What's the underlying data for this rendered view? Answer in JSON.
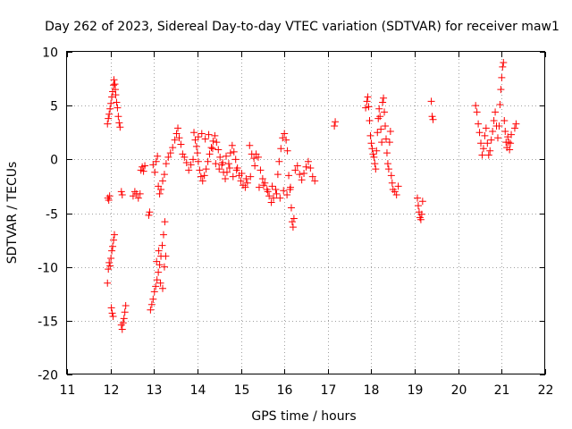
{
  "chart_data": {
    "type": "scatter",
    "title": "Day 262 of 2023, Sidereal Day-to-day VTEC variation (SDTVAR) for receiver maw1",
    "xlabel": "GPS time / hours",
    "ylabel": "SDTVAR / TECUs",
    "xlim": [
      11,
      22
    ],
    "ylim": [
      -20,
      10
    ],
    "xticks": [
      "11",
      "12",
      "13",
      "14",
      "15",
      "16",
      "17",
      "18",
      "19",
      "20",
      "21",
      "22"
    ],
    "yticks": [
      "-20",
      "-15",
      "-10",
      "-5",
      "0",
      "5",
      "10"
    ],
    "grid": true,
    "marker": "plus",
    "color": "#ff0000",
    "series": [
      {
        "name": "maw1",
        "points": [
          [
            11.93,
            3.3
          ],
          [
            11.95,
            3.8
          ],
          [
            11.97,
            4.2
          ],
          [
            11.99,
            4.7
          ],
          [
            12.01,
            5.2
          ],
          [
            12.03,
            5.8
          ],
          [
            12.05,
            6.3
          ],
          [
            12.07,
            6.9
          ],
          [
            12.08,
            7.4
          ],
          [
            12.1,
            7.0
          ],
          [
            12.11,
            6.5
          ],
          [
            12.12,
            6.0
          ],
          [
            12.14,
            5.3
          ],
          [
            12.16,
            4.8
          ],
          [
            12.18,
            4.0
          ],
          [
            12.2,
            3.4
          ],
          [
            12.22,
            3.0
          ],
          [
            11.94,
            -3.6
          ],
          [
            11.96,
            -3.8
          ],
          [
            11.98,
            -3.4
          ],
          [
            11.93,
            -11.5
          ],
          [
            11.95,
            -10.2
          ],
          [
            11.97,
            -9.6
          ],
          [
            11.99,
            -9.9
          ],
          [
            12.01,
            -9.2
          ],
          [
            12.03,
            -8.5
          ],
          [
            12.05,
            -8.1
          ],
          [
            12.07,
            -7.5
          ],
          [
            12.09,
            -7.0
          ],
          [
            12.02,
            -13.8
          ],
          [
            12.04,
            -14.3
          ],
          [
            12.06,
            -14.6
          ],
          [
            12.25,
            -15.4
          ],
          [
            12.27,
            -15.8
          ],
          [
            12.29,
            -15.2
          ],
          [
            12.31,
            -14.8
          ],
          [
            12.33,
            -14.2
          ],
          [
            12.35,
            -13.6
          ],
          [
            12.25,
            -3.0
          ],
          [
            12.27,
            -3.3
          ],
          [
            12.52,
            -3.4
          ],
          [
            12.56,
            -3.0
          ],
          [
            12.6,
            -3.2
          ],
          [
            12.64,
            -3.6
          ],
          [
            12.68,
            -3.2
          ],
          [
            12.7,
            -1.0
          ],
          [
            12.73,
            -0.7
          ],
          [
            12.76,
            -1.1
          ],
          [
            12.79,
            -0.6
          ],
          [
            12.88,
            -5.2
          ],
          [
            12.9,
            -4.9
          ],
          [
            12.92,
            -14.0
          ],
          [
            12.95,
            -13.5
          ],
          [
            12.98,
            -13.0
          ],
          [
            13.01,
            -12.3
          ],
          [
            13.04,
            -11.8
          ],
          [
            13.07,
            -11.2
          ],
          [
            13.1,
            -10.5
          ],
          [
            13.13,
            -9.8
          ],
          [
            13.16,
            -9.0
          ],
          [
            13.19,
            -8.0
          ],
          [
            13.22,
            -7.0
          ],
          [
            13.25,
            -5.8
          ],
          [
            13.06,
            -9.5
          ],
          [
            13.11,
            -8.5
          ],
          [
            13.15,
            -11.5
          ],
          [
            13.2,
            -12.0
          ],
          [
            13.24,
            -10.0
          ],
          [
            13.27,
            -9.0
          ],
          [
            12.98,
            -0.5
          ],
          [
            13.02,
            -1.2
          ],
          [
            13.05,
            -0.2
          ],
          [
            13.08,
            0.3
          ],
          [
            13.1,
            -2.5
          ],
          [
            13.13,
            -3.2
          ],
          [
            13.16,
            -2.8
          ],
          [
            13.2,
            -2.0
          ],
          [
            13.24,
            -1.4
          ],
          [
            13.28,
            -0.4
          ],
          [
            13.33,
            0.2
          ],
          [
            13.38,
            0.6
          ],
          [
            13.43,
            1.1
          ],
          [
            13.48,
            1.8
          ],
          [
            13.52,
            2.4
          ],
          [
            13.55,
            2.9
          ],
          [
            13.58,
            2.0
          ],
          [
            13.62,
            1.4
          ],
          [
            13.66,
            0.5
          ],
          [
            13.7,
            0.2
          ],
          [
            13.75,
            -0.3
          ],
          [
            13.8,
            -1.0
          ],
          [
            13.85,
            -0.5
          ],
          [
            13.9,
            0.0
          ],
          [
            13.92,
            2.5
          ],
          [
            13.95,
            1.8
          ],
          [
            13.98,
            1.2
          ],
          [
            14.0,
            0.6
          ],
          [
            14.02,
            -0.2
          ],
          [
            14.05,
            -1.0
          ],
          [
            14.08,
            -1.6
          ],
          [
            14.12,
            -2.0
          ],
          [
            14.16,
            -1.5
          ],
          [
            14.2,
            -0.9
          ],
          [
            14.24,
            -0.2
          ],
          [
            14.28,
            0.5
          ],
          [
            14.32,
            1.1
          ],
          [
            14.36,
            1.7
          ],
          [
            14.4,
            2.2
          ],
          [
            14.44,
            1.6
          ],
          [
            14.48,
            0.9
          ],
          [
            14.52,
            0.2
          ],
          [
            14.56,
            -0.5
          ],
          [
            14.6,
            -1.2
          ],
          [
            14.64,
            -1.8
          ],
          [
            14.68,
            -1.2
          ],
          [
            14.72,
            -0.4
          ],
          [
            14.76,
            0.6
          ],
          [
            14.8,
            1.3
          ],
          [
            14.84,
            0.7
          ],
          [
            14.88,
            0.0
          ],
          [
            14.92,
            -0.8
          ],
          [
            14.96,
            -1.5
          ],
          [
            15.0,
            -2.0
          ],
          [
            15.05,
            -2.4
          ],
          [
            15.1,
            -2.6
          ],
          [
            15.15,
            -2.2
          ],
          [
            15.2,
            1.3
          ],
          [
            15.25,
            0.5
          ],
          [
            15.3,
            0.1
          ],
          [
            15.35,
            0.5
          ],
          [
            15.4,
            0.2
          ],
          [
            15.45,
            -1.0
          ],
          [
            15.5,
            -1.8
          ],
          [
            15.55,
            -2.2
          ],
          [
            15.6,
            -2.8
          ],
          [
            15.65,
            -3.4
          ],
          [
            15.7,
            -4.0
          ],
          [
            15.75,
            -3.6
          ],
          [
            15.8,
            -2.8
          ],
          [
            15.85,
            -1.4
          ],
          [
            15.88,
            -0.2
          ],
          [
            15.92,
            1.0
          ],
          [
            15.96,
            2.0
          ],
          [
            16.0,
            2.4
          ],
          [
            16.04,
            1.8
          ],
          [
            16.07,
            0.8
          ],
          [
            16.1,
            -1.5
          ],
          [
            16.13,
            -2.8
          ],
          [
            16.16,
            -4.5
          ],
          [
            16.18,
            -5.8
          ],
          [
            16.2,
            -6.3
          ],
          [
            16.22,
            -5.5
          ],
          [
            14.02,
            2.1
          ],
          [
            14.1,
            2.4
          ],
          [
            14.18,
            1.9
          ],
          [
            14.26,
            2.3
          ],
          [
            14.35,
            1.0
          ],
          [
            14.42,
            -0.4
          ],
          [
            14.5,
            -0.9
          ],
          [
            14.58,
            -0.3
          ],
          [
            14.66,
            0.3
          ],
          [
            14.74,
            -0.8
          ],
          [
            14.82,
            -1.6
          ],
          [
            14.9,
            -1.0
          ],
          [
            15.02,
            -1.3
          ],
          [
            15.12,
            -1.8
          ],
          [
            15.22,
            -1.6
          ],
          [
            15.32,
            -0.6
          ],
          [
            15.42,
            -2.6
          ],
          [
            15.52,
            -2.4
          ],
          [
            15.62,
            -3.0
          ],
          [
            15.72,
            -2.5
          ],
          [
            15.82,
            -3.2
          ],
          [
            15.9,
            -3.6
          ],
          [
            15.98,
            -2.9
          ],
          [
            16.06,
            -3.3
          ],
          [
            16.14,
            -2.6
          ],
          [
            16.25,
            -1.0
          ],
          [
            16.3,
            -0.6
          ],
          [
            16.35,
            -1.4
          ],
          [
            16.4,
            -1.9
          ],
          [
            16.45,
            -1.3
          ],
          [
            16.5,
            -0.7
          ],
          [
            16.55,
            -0.2
          ],
          [
            16.6,
            -0.8
          ],
          [
            16.65,
            -1.6
          ],
          [
            16.7,
            -2.0
          ],
          [
            17.15,
            3.1
          ],
          [
            17.17,
            3.5
          ],
          [
            17.87,
            4.8
          ],
          [
            17.9,
            5.4
          ],
          [
            17.92,
            5.8
          ],
          [
            17.94,
            4.9
          ],
          [
            17.96,
            3.6
          ],
          [
            17.98,
            2.2
          ],
          [
            18.0,
            1.5
          ],
          [
            18.02,
            1.0
          ],
          [
            18.04,
            0.5
          ],
          [
            18.06,
            0.2
          ],
          [
            18.08,
            -0.4
          ],
          [
            18.1,
            -0.9
          ],
          [
            18.12,
            0.8
          ],
          [
            18.14,
            2.5
          ],
          [
            18.16,
            3.8
          ],
          [
            18.18,
            4.7
          ],
          [
            18.2,
            4.0
          ],
          [
            18.22,
            2.8
          ],
          [
            18.24,
            1.6
          ],
          [
            18.26,
            5.3
          ],
          [
            18.28,
            5.7
          ],
          [
            18.3,
            4.4
          ],
          [
            18.32,
            3.1
          ],
          [
            18.34,
            1.9
          ],
          [
            18.36,
            0.6
          ],
          [
            18.38,
            -0.4
          ],
          [
            18.4,
            -0.9
          ],
          [
            18.42,
            1.6
          ],
          [
            18.44,
            2.6
          ],
          [
            18.46,
            -1.5
          ],
          [
            18.48,
            -2.2
          ],
          [
            18.5,
            -2.8
          ],
          [
            18.54,
            -3.0
          ],
          [
            18.58,
            -3.3
          ],
          [
            18.62,
            -2.5
          ],
          [
            19.06,
            -3.6
          ],
          [
            19.08,
            -4.3
          ],
          [
            19.1,
            -4.9
          ],
          [
            19.12,
            -5.4
          ],
          [
            19.14,
            -5.6
          ],
          [
            19.16,
            -5.1
          ],
          [
            19.18,
            -3.9
          ],
          [
            19.38,
            5.4
          ],
          [
            19.4,
            4.0
          ],
          [
            19.42,
            3.7
          ],
          [
            20.4,
            5.0
          ],
          [
            20.43,
            4.4
          ],
          [
            20.46,
            3.3
          ],
          [
            20.49,
            2.5
          ],
          [
            20.52,
            1.5
          ],
          [
            20.55,
            0.4
          ],
          [
            20.58,
            1.0
          ],
          [
            20.61,
            2.2
          ],
          [
            20.64,
            2.9
          ],
          [
            20.67,
            1.5
          ],
          [
            20.7,
            0.4
          ],
          [
            20.73,
            0.8
          ],
          [
            20.76,
            1.8
          ],
          [
            20.79,
            2.6
          ],
          [
            20.82,
            3.6
          ],
          [
            20.85,
            4.4
          ],
          [
            20.88,
            3.1
          ],
          [
            20.91,
            2.0
          ],
          [
            20.94,
            3.1
          ],
          [
            20.96,
            5.1
          ],
          [
            20.98,
            6.5
          ],
          [
            21.0,
            7.6
          ],
          [
            21.02,
            8.6
          ],
          [
            21.04,
            9.0
          ],
          [
            21.06,
            3.6
          ],
          [
            21.08,
            2.6
          ],
          [
            21.1,
            1.6
          ],
          [
            21.12,
            1.1
          ],
          [
            21.14,
            2.1
          ],
          [
            21.16,
            1.6
          ],
          [
            21.18,
            0.9
          ],
          [
            21.2,
            1.5
          ],
          [
            21.22,
            2.3
          ],
          [
            21.3,
            2.9
          ],
          [
            21.33,
            3.3
          ]
        ]
      }
    ]
  }
}
